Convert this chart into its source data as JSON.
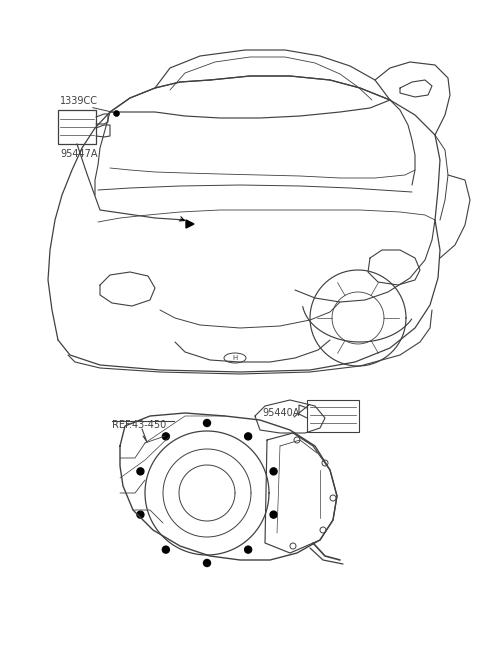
{
  "bg_color": "#ffffff",
  "line_color": "#404040",
  "label_1339CC": "1339CC",
  "label_95447A": "95447A",
  "label_REF43450": "REF.43-450",
  "label_95440A": "95440A",
  "fig_width": 4.8,
  "fig_height": 6.55,
  "dpi": 100,
  "font_size": 7.0
}
